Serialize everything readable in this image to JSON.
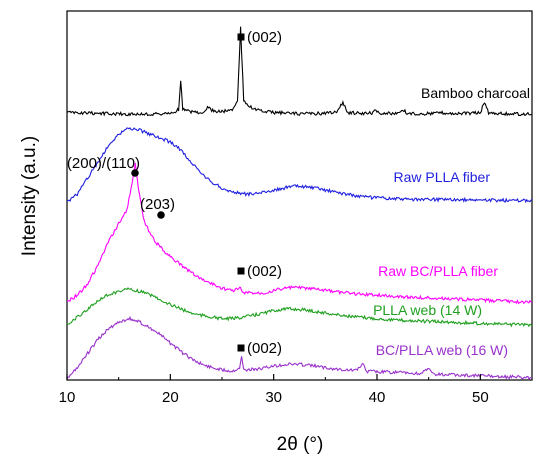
{
  "chart_data": {
    "type": "line",
    "xlabel": "2θ (°)",
    "ylabel": "Intensity (a.u.)",
    "xlim": [
      10,
      55
    ],
    "xticks": [
      10,
      20,
      30,
      40,
      50
    ],
    "yticks_shown": false,
    "grid": false,
    "series": [
      {
        "name": "Bamboo charcoal",
        "color": "#000000",
        "points": [
          [
            10,
            0.045
          ],
          [
            12,
            0.042
          ],
          [
            14,
            0.04
          ],
          [
            16,
            0.038
          ],
          [
            18,
            0.037
          ],
          [
            20,
            0.04
          ],
          [
            20.8,
            0.06
          ],
          [
            21.0,
            0.2
          ],
          [
            21.2,
            0.06
          ],
          [
            22,
            0.05
          ],
          [
            23,
            0.045
          ],
          [
            23.7,
            0.07
          ],
          [
            24.2,
            0.05
          ],
          [
            25,
            0.05
          ],
          [
            26,
            0.06
          ],
          [
            26.5,
            0.1
          ],
          [
            26.8,
            0.45
          ],
          [
            27.1,
            0.1
          ],
          [
            27.8,
            0.07
          ],
          [
            28.2,
            0.06
          ],
          [
            29,
            0.05
          ],
          [
            30,
            0.045
          ],
          [
            32,
            0.04
          ],
          [
            34,
            0.04
          ],
          [
            36,
            0.045
          ],
          [
            36.7,
            0.09
          ],
          [
            37.2,
            0.045
          ],
          [
            38,
            0.042
          ],
          [
            39.5,
            0.042
          ],
          [
            39.8,
            0.06
          ],
          [
            40.2,
            0.042
          ],
          [
            42,
            0.04
          ],
          [
            42.6,
            0.055
          ],
          [
            43,
            0.04
          ],
          [
            45,
            0.04
          ],
          [
            46,
            0.045
          ],
          [
            48,
            0.04
          ],
          [
            50,
            0.045
          ],
          [
            50.4,
            0.095
          ],
          [
            50.8,
            0.045
          ],
          [
            52,
            0.04
          ],
          [
            54,
            0.038
          ],
          [
            55,
            0.036
          ]
        ]
      },
      {
        "name": "Raw PLLA fiber",
        "color": "#1f1fe0",
        "points": [
          [
            10,
            0.0
          ],
          [
            11,
            0.02
          ],
          [
            12,
            0.06
          ],
          [
            13,
            0.1
          ],
          [
            14,
            0.14
          ],
          [
            15,
            0.17
          ],
          [
            16,
            0.185
          ],
          [
            17,
            0.18
          ],
          [
            18,
            0.17
          ],
          [
            19,
            0.16
          ],
          [
            20,
            0.15
          ],
          [
            21,
            0.13
          ],
          [
            22,
            0.1
          ],
          [
            23,
            0.07
          ],
          [
            24,
            0.05
          ],
          [
            25,
            0.035
          ],
          [
            26,
            0.025
          ],
          [
            27,
            0.02
          ],
          [
            28,
            0.02
          ],
          [
            29,
            0.025
          ],
          [
            30,
            0.03
          ],
          [
            31,
            0.035
          ],
          [
            32,
            0.04
          ],
          [
            33,
            0.038
          ],
          [
            34,
            0.035
          ],
          [
            35,
            0.03
          ],
          [
            36,
            0.025
          ],
          [
            37,
            0.02
          ],
          [
            38,
            0.015
          ],
          [
            40,
            0.01
          ],
          [
            42,
            0.008
          ],
          [
            44,
            0.006
          ],
          [
            46,
            0.006
          ],
          [
            48,
            0.005
          ],
          [
            50,
            0.005
          ],
          [
            52,
            0.004
          ],
          [
            54,
            0.004
          ],
          [
            55,
            0.004
          ]
        ]
      },
      {
        "name": "Raw BC/PLLA fiber",
        "color": "#ff00ff",
        "points": [
          [
            10,
            0.0
          ],
          [
            11,
            0.015
          ],
          [
            12,
            0.04
          ],
          [
            13,
            0.08
          ],
          [
            14,
            0.13
          ],
          [
            15,
            0.17
          ],
          [
            15.8,
            0.2
          ],
          [
            16.3,
            0.26
          ],
          [
            16.6,
            0.3
          ],
          [
            16.9,
            0.25
          ],
          [
            17.4,
            0.18
          ],
          [
            18,
            0.15
          ],
          [
            18.6,
            0.13
          ],
          [
            19,
            0.12
          ],
          [
            19.4,
            0.11
          ],
          [
            20,
            0.1
          ],
          [
            21,
            0.08
          ],
          [
            22,
            0.065
          ],
          [
            23,
            0.05
          ],
          [
            24,
            0.04
          ],
          [
            25,
            0.03
          ],
          [
            26,
            0.025
          ],
          [
            26.8,
            0.03
          ],
          [
            27,
            0.02
          ],
          [
            28,
            0.02
          ],
          [
            29,
            0.02
          ],
          [
            30,
            0.025
          ],
          [
            31,
            0.03
          ],
          [
            32,
            0.032
          ],
          [
            33,
            0.03
          ],
          [
            34,
            0.028
          ],
          [
            35,
            0.025
          ],
          [
            36,
            0.022
          ],
          [
            38,
            0.018
          ],
          [
            40,
            0.015
          ],
          [
            42,
            0.012
          ],
          [
            44,
            0.01
          ],
          [
            46,
            0.008
          ],
          [
            48,
            0.006
          ],
          [
            50,
            0.004
          ],
          [
            52,
            0.002
          ],
          [
            54,
            0.0
          ],
          [
            55,
            0.0
          ]
        ]
      },
      {
        "name": "PLLA web (14 W)",
        "color": "#1fa01f",
        "points": [
          [
            10,
            0.0
          ],
          [
            11,
            0.01
          ],
          [
            12,
            0.02
          ],
          [
            13,
            0.03
          ],
          [
            14,
            0.038
          ],
          [
            15,
            0.042
          ],
          [
            16,
            0.045
          ],
          [
            17,
            0.042
          ],
          [
            18,
            0.038
          ],
          [
            19,
            0.032
          ],
          [
            20,
            0.026
          ],
          [
            21,
            0.02
          ],
          [
            22,
            0.015
          ],
          [
            23,
            0.012
          ],
          [
            24,
            0.01
          ],
          [
            25,
            0.008
          ],
          [
            26,
            0.008
          ],
          [
            27,
            0.01
          ],
          [
            28,
            0.012
          ],
          [
            29,
            0.015
          ],
          [
            30,
            0.018
          ],
          [
            31,
            0.02
          ],
          [
            32,
            0.02
          ],
          [
            33,
            0.019
          ],
          [
            34,
            0.017
          ],
          [
            35,
            0.015
          ],
          [
            36,
            0.013
          ],
          [
            38,
            0.01
          ],
          [
            40,
            0.008
          ],
          [
            42,
            0.006
          ],
          [
            44,
            0.005
          ],
          [
            46,
            0.004
          ],
          [
            48,
            0.003
          ],
          [
            50,
            0.002
          ],
          [
            52,
            0.001
          ],
          [
            54,
            0.0
          ],
          [
            55,
            0.0
          ]
        ]
      },
      {
        "name": "BC/PLLA web (16 W)",
        "color": "#9932cc",
        "points": [
          [
            10,
            0.0
          ],
          [
            11,
            0.015
          ],
          [
            12,
            0.035
          ],
          [
            13,
            0.055
          ],
          [
            14,
            0.07
          ],
          [
            15,
            0.08
          ],
          [
            16,
            0.085
          ],
          [
            17,
            0.08
          ],
          [
            18,
            0.072
          ],
          [
            19,
            0.062
          ],
          [
            20,
            0.05
          ],
          [
            21,
            0.038
          ],
          [
            22,
            0.028
          ],
          [
            23,
            0.02
          ],
          [
            24,
            0.015
          ],
          [
            25,
            0.012
          ],
          [
            26,
            0.01
          ],
          [
            26.7,
            0.015
          ],
          [
            26.9,
            0.03
          ],
          [
            27.1,
            0.012
          ],
          [
            28,
            0.012
          ],
          [
            29,
            0.014
          ],
          [
            30,
            0.017
          ],
          [
            31,
            0.019
          ],
          [
            32,
            0.02
          ],
          [
            33,
            0.019
          ],
          [
            34,
            0.017
          ],
          [
            35,
            0.015
          ],
          [
            36,
            0.013
          ],
          [
            38,
            0.011
          ],
          [
            38.6,
            0.02
          ],
          [
            39,
            0.01
          ],
          [
            40,
            0.009
          ],
          [
            42,
            0.008
          ],
          [
            44,
            0.006
          ],
          [
            45,
            0.012
          ],
          [
            45.5,
            0.006
          ],
          [
            46,
            0.005
          ],
          [
            48,
            0.004
          ],
          [
            50,
            0.003
          ],
          [
            52,
            0.002
          ],
          [
            54,
            0.001
          ],
          [
            55,
            0.0
          ]
        ]
      }
    ],
    "annotations": [
      {
        "text": "(002)",
        "marker": "square",
        "series": "Bamboo charcoal",
        "x": 26.8
      },
      {
        "text": "(200)/(110)",
        "marker": "circle",
        "series": "Raw BC/PLLA fiber",
        "x": 16.6
      },
      {
        "text": "(203)",
        "marker": "circle",
        "series": "Raw BC/PLLA fiber",
        "x": 19.0
      },
      {
        "text": "(002)",
        "marker": "square",
        "series": "Raw BC/PLLA fiber",
        "x": 26.8
      },
      {
        "text": "(002)",
        "marker": "square",
        "series": "BC/PLLA web (16 W)",
        "x": 26.8
      }
    ]
  }
}
